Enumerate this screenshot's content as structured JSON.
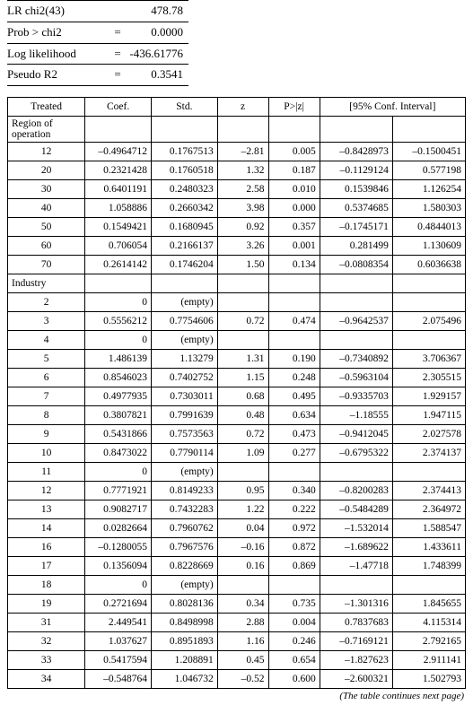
{
  "stats": [
    {
      "label": "LR chi2(43)",
      "eq": "",
      "val": "478.78"
    },
    {
      "label": "Prob > chi2",
      "eq": "=",
      "val": "0.0000"
    },
    {
      "label": "Log likelihood",
      "eq": "=",
      "val": "-436.61776"
    },
    {
      "label": "Pseudo R2",
      "eq": "=",
      "val": "0.3541"
    }
  ],
  "hdr": {
    "treated": "Treated",
    "coef": "Coef.",
    "std": "Std.",
    "z": "z",
    "pz": "P>|z|",
    "ci": "[95% Conf. Interval]"
  },
  "sections": [
    {
      "title": "Region of operation",
      "rows": [
        {
          "label": "12",
          "coef": "–0.4964712",
          "std": "0.1767513",
          "z": "–2.81",
          "pz": "0.005",
          "lo": "–0.8428973",
          "hi": "–0.1500451"
        },
        {
          "label": "20",
          "coef": "0.2321428",
          "std": "0.1760518",
          "z": "1.32",
          "pz": "0.187",
          "lo": "–0.1129124",
          "hi": "0.577198"
        },
        {
          "label": "30",
          "coef": "0.6401191",
          "std": "0.2480323",
          "z": "2.58",
          "pz": "0.010",
          "lo": "0.1539846",
          "hi": "1.126254"
        },
        {
          "label": "40",
          "coef": "1.058886",
          "std": "0.2660342",
          "z": "3.98",
          "pz": "0.000",
          "lo": "0.5374685",
          "hi": "1.580303"
        },
        {
          "label": "50",
          "coef": "0.1549421",
          "std": "0.1680945",
          "z": "0.92",
          "pz": "0.357",
          "lo": "–0.1745171",
          "hi": "0.4844013"
        },
        {
          "label": "60",
          "coef": "0.706054",
          "std": "0.2166137",
          "z": "3.26",
          "pz": "0.001",
          "lo": "0.281499",
          "hi": "1.130609"
        },
        {
          "label": "70",
          "coef": "0.2614142",
          "std": "0.1746204",
          "z": "1.50",
          "pz": "0.134",
          "lo": "–0.0808354",
          "hi": "0.6036638"
        }
      ]
    },
    {
      "title": "Industry",
      "rows": [
        {
          "label": "2",
          "coef": "0",
          "std": "(empty)",
          "z": "",
          "pz": "",
          "lo": "",
          "hi": ""
        },
        {
          "label": "3",
          "coef": "0.5556212",
          "std": "0.7754606",
          "z": "0.72",
          "pz": "0.474",
          "lo": "–0.9642537",
          "hi": "2.075496"
        },
        {
          "label": "4",
          "coef": "0",
          "std": "(empty)",
          "z": "",
          "pz": "",
          "lo": "",
          "hi": ""
        },
        {
          "label": "5",
          "coef": "1.486139",
          "std": "1.13279",
          "z": "1.31",
          "pz": "0.190",
          "lo": "–0.7340892",
          "hi": "3.706367"
        },
        {
          "label": "6",
          "coef": "0.8546023",
          "std": "0.7402752",
          "z": "1.15",
          "pz": "0.248",
          "lo": "–0.5963104",
          "hi": "2.305515"
        },
        {
          "label": "7",
          "coef": "0.4977935",
          "std": "0.7303011",
          "z": "0.68",
          "pz": "0.495",
          "lo": "–0.9335703",
          "hi": "1.929157"
        },
        {
          "label": "8",
          "coef": "0.3807821",
          "std": "0.7991639",
          "z": "0.48",
          "pz": "0.634",
          "lo": "–1.18555",
          "hi": "1.947115"
        },
        {
          "label": "9",
          "coef": "0.5431866",
          "std": "0.7573563",
          "z": "0.72",
          "pz": "0.473",
          "lo": "–0.9412045",
          "hi": "2.027578"
        },
        {
          "label": "10",
          "coef": "0.8473022",
          "std": "0.7790114",
          "z": "1.09",
          "pz": "0.277",
          "lo": "–0.6795322",
          "hi": "2.374137"
        },
        {
          "label": "11",
          "coef": "0",
          "std": "(empty)",
          "z": "",
          "pz": "",
          "lo": "",
          "hi": ""
        },
        {
          "label": "12",
          "coef": "0.7771921",
          "std": "0.8149233",
          "z": "0.95",
          "pz": "0.340",
          "lo": "–0.8200283",
          "hi": "2.374413"
        },
        {
          "label": "13",
          "coef": "0.9082717",
          "std": "0.7432283",
          "z": "1.22",
          "pz": "0.222",
          "lo": "–0.5484289",
          "hi": "2.364972"
        },
        {
          "label": "14",
          "coef": "0.0282664",
          "std": "0.7960762",
          "z": "0.04",
          "pz": "0.972",
          "lo": "–1.532014",
          "hi": "1.588547"
        },
        {
          "label": "16",
          "coef": "–0.1280055",
          "std": "0.7967576",
          "z": "–0.16",
          "pz": "0.872",
          "lo": "–1.689622",
          "hi": "1.433611"
        },
        {
          "label": "17",
          "coef": "0.1356094",
          "std": "0.8228669",
          "z": "0.16",
          "pz": "0.869",
          "lo": "–1.47718",
          "hi": "1.748399"
        },
        {
          "label": "18",
          "coef": "0",
          "std": "(empty)",
          "z": "",
          "pz": "",
          "lo": "",
          "hi": ""
        },
        {
          "label": "19",
          "coef": "0.2721694",
          "std": "0.8028136",
          "z": "0.34",
          "pz": "0.735",
          "lo": "–1.301316",
          "hi": "1.845655"
        },
        {
          "label": "31",
          "coef": "2.449541",
          "std": "0.8498998",
          "z": "2.88",
          "pz": "0.004",
          "lo": "0.7837683",
          "hi": "4.115314"
        },
        {
          "label": "32",
          "coef": "1.037627",
          "std": "0.8951893",
          "z": "1.16",
          "pz": "0.246",
          "lo": "–0.7169121",
          "hi": "2.792165"
        },
        {
          "label": "33",
          "coef": "0.5417594",
          "std": "1.208891",
          "z": "0.45",
          "pz": "0.654",
          "lo": "–1.827623",
          "hi": "2.911141"
        },
        {
          "label": "34",
          "coef": "–0.548764",
          "std": "1.046732",
          "z": "–0.52",
          "pz": "0.600",
          "lo": "–2.600321",
          "hi": "1.502793"
        }
      ]
    }
  ],
  "continue": "(The table continues next page)"
}
